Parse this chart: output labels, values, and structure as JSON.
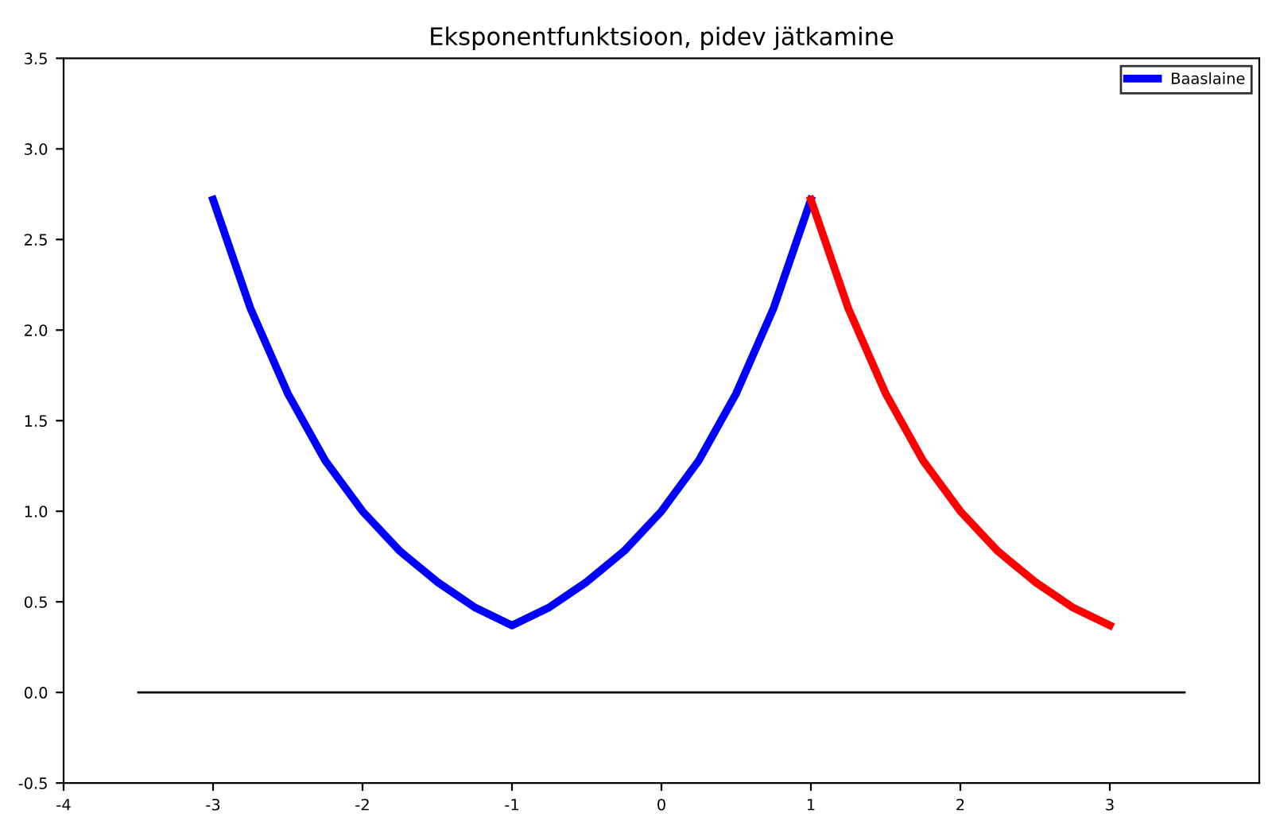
{
  "chart_data": {
    "type": "line",
    "title": "Eksponentfunktsioon, pidev jätkamine",
    "legend": "top right",
    "grid": false,
    "xlim": [
      -4,
      4
    ],
    "xticks": [
      -4,
      -3,
      -2,
      -1,
      0,
      1,
      2,
      3
    ],
    "ylim": [
      -0.5,
      3.5
    ],
    "yticks": [
      -0.5,
      {
        "value": 0,
        "label": "0.0"
      },
      0.5,
      {
        "value": 1,
        "label": "1.0"
      },
      1.5,
      {
        "value": 2,
        "label": "2.0"
      },
      2.5,
      {
        "value": 3,
        "label": "3.0"
      },
      3.5
    ],
    "series": [
      {
        "name": "Baaslaine",
        "color": "#0000ff",
        "x": [
          -3,
          -2.75,
          -2.5,
          -2.25,
          -2,
          -1.75,
          -1.5,
          -1.25,
          -1,
          -0.75,
          -0.5,
          -0.25,
          0,
          0.25,
          0.5,
          0.75,
          1
        ],
        "values": [
          2.72,
          2.12,
          1.65,
          1.28,
          1.0,
          0.78,
          0.61,
          0.47,
          0.37,
          0.47,
          0.61,
          0.78,
          1.0,
          1.28,
          1.65,
          2.12,
          2.72
        ]
      },
      {
        "color": "#ff0000",
        "x": [
          1,
          1.25,
          1.5,
          1.75,
          2,
          2.25,
          2.5,
          2.75,
          3
        ],
        "values": [
          2.72,
          2.12,
          1.65,
          1.28,
          1.0,
          0.78,
          0.61,
          0.47,
          0.37
        ]
      },
      {
        "color": "#000000",
        "x": [
          -3.5,
          3.5
        ],
        "values": [
          0,
          0
        ]
      }
    ]
  }
}
